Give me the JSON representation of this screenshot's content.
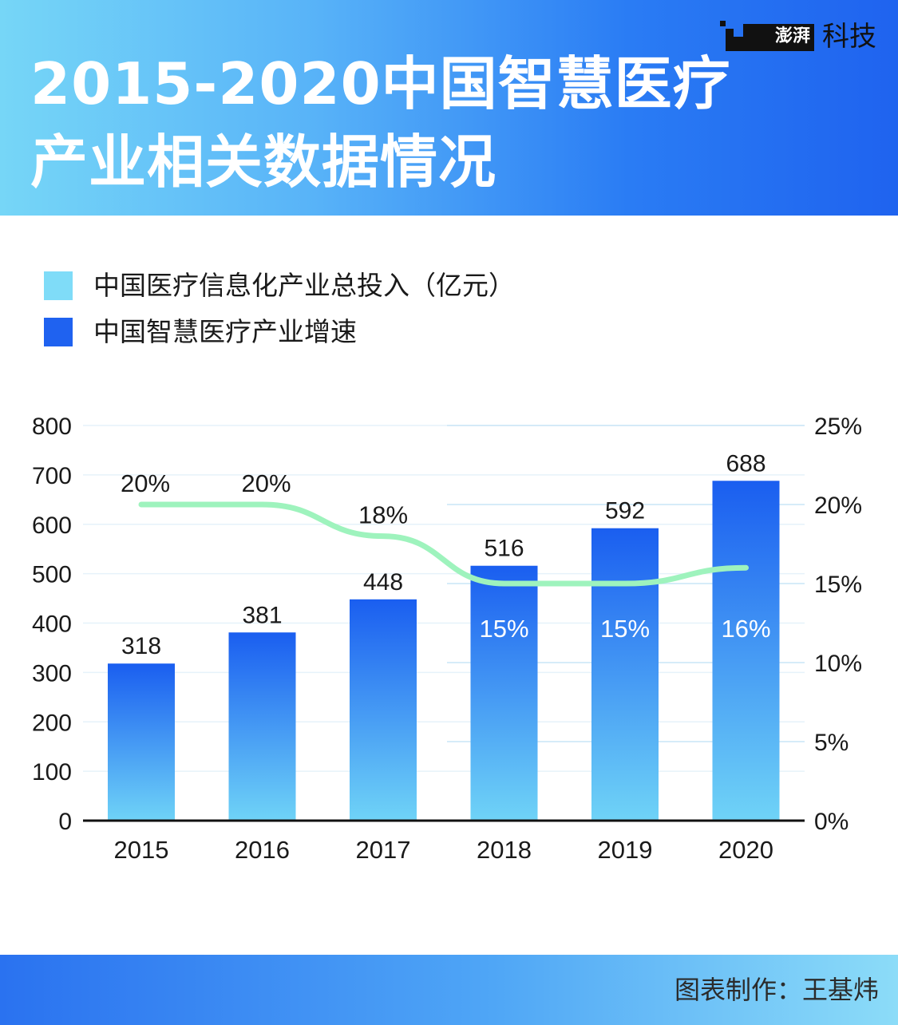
{
  "header": {
    "title_line1": "2015-2020中国智慧医疗",
    "title_line2": "产业相关数据情况",
    "brand_logo_text": "澎湃",
    "brand_text": "科技",
    "brand_icon": "the-paper-logo-icon"
  },
  "colors": {
    "bar_top": "#1a5ef0",
    "bar_bottom": "#6fd3f7",
    "line": "#9ef3bd",
    "grid": "#c9e6f7",
    "baseline": "#111111"
  },
  "legend": [
    {
      "label": "中国医疗信息化产业总投入（亿元）",
      "color": "#7fdcf8"
    },
    {
      "label": "中国智慧医疗产业增速",
      "color": "#1f62f0"
    }
  ],
  "chart_data": {
    "type": "bar",
    "categories": [
      "2015",
      "2016",
      "2017",
      "2018",
      "2019",
      "2020"
    ],
    "series": [
      {
        "name": "中国医疗信息化产业总投入（亿元）",
        "type": "bar",
        "axis": "left",
        "values": [
          318,
          381,
          448,
          516,
          592,
          688
        ],
        "labels": [
          "318",
          "381",
          "448",
          "516",
          "592",
          "688"
        ]
      },
      {
        "name": "中国智慧医疗产业增速",
        "type": "line",
        "axis": "right",
        "values": [
          20,
          20,
          18,
          15,
          15,
          16
        ],
        "labels": [
          "20%",
          "20%",
          "18%",
          "15%",
          "15%",
          "16%"
        ]
      }
    ],
    "y_left": {
      "range": [
        0,
        800
      ],
      "ticks": [
        "0",
        "100",
        "200",
        "300",
        "400",
        "500",
        "600",
        "700",
        "800"
      ]
    },
    "y_right": {
      "range": [
        0,
        25
      ],
      "ticks": [
        "0%",
        "5%",
        "10%",
        "15%",
        "20%",
        "25%"
      ]
    },
    "grid": true
  },
  "footer": {
    "credit": "图表制作：王基炜"
  }
}
